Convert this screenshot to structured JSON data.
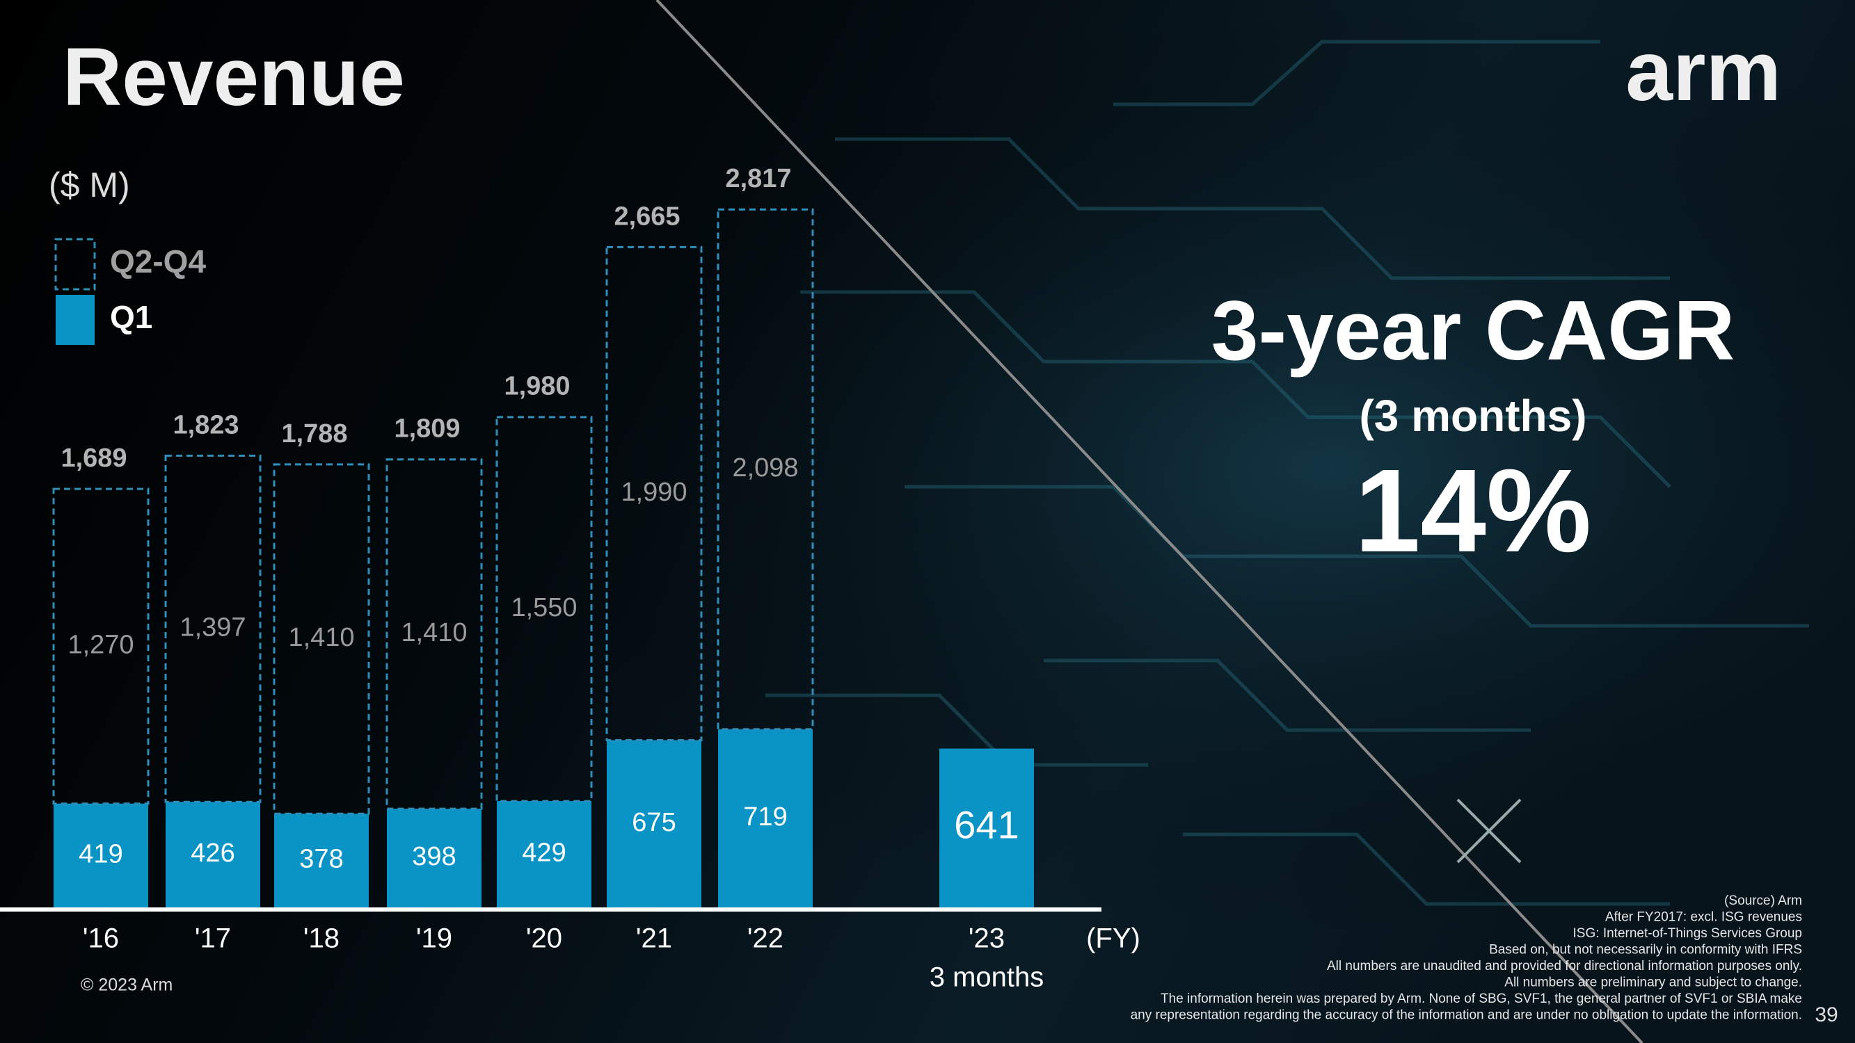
{
  "chart_data": {
    "type": "stacked_bar",
    "unit_label": "($ M)",
    "x_label": "(FY)",
    "categories": [
      "'16",
      "'17",
      "'18",
      "'19",
      "'20",
      "'21",
      "'22",
      "'23"
    ],
    "category_sublabels": [
      null,
      null,
      null,
      null,
      null,
      null,
      null,
      "3 months"
    ],
    "series": [
      {
        "name": "Q1",
        "color": "#0a94c6",
        "style": "solid",
        "values": [
          419,
          426,
          378,
          398,
          429,
          675,
          719,
          641
        ]
      },
      {
        "name": "Q2-Q4",
        "color": "#2f8fb9",
        "style": "dashed",
        "values": [
          1270,
          1397,
          1410,
          1410,
          1550,
          1990,
          2098,
          null
        ],
        "value_labels": [
          "1,270",
          "1,397",
          "1,410",
          "1,410",
          "1,550",
          "1,990",
          "2,098",
          null
        ]
      }
    ],
    "totals": {
      "values": [
        1689,
        1823,
        1788,
        1809,
        1980,
        2665,
        2817,
        null
      ],
      "value_labels": [
        "1,689",
        "1,823",
        "1,788",
        "1,809",
        "1,980",
        "2,665",
        "2,817",
        null
      ]
    },
    "ylim": [
      0,
      3000
    ]
  },
  "slide": {
    "title": "Revenue",
    "logo": "arm",
    "highlight": {
      "heading": "3-year CAGR",
      "subheading": "(3 months)",
      "figure": "14%"
    },
    "footnotes": [
      "(Source) Arm",
      "After FY2017: excl. ISG revenues",
      "ISG: Internet-of-Things Services Group",
      "Based on, but not necessarily in conformity with IFRS",
      "All numbers are unaudited and provided for directional information purposes only.",
      "All numbers are preliminary and subject to change.",
      "The information herein was prepared by Arm. None of SBG, SVF1, the general partner of SVF1 or SBIA make",
      "any representation regarding the accuracy of the information and are under no obligation to update the information."
    ],
    "copyright": "© 2023 Arm",
    "page_number": "39"
  }
}
